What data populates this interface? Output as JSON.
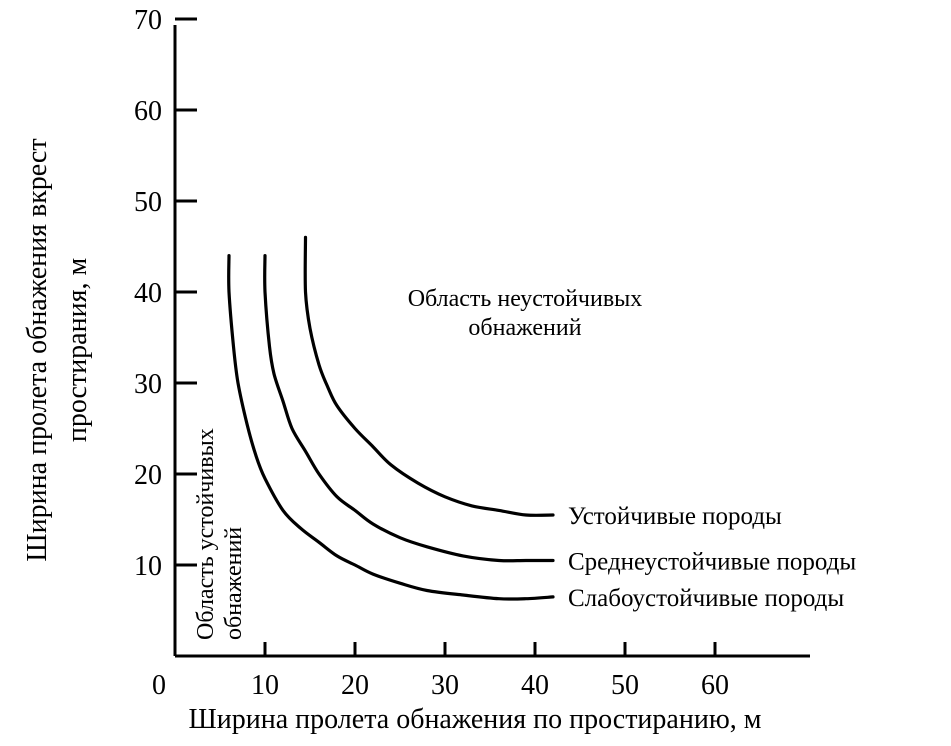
{
  "chart_data": {
    "type": "line",
    "xlabel": "Ширина пролета обнажения по простиранию, м",
    "ylabel_lines": [
      "Ширина пролета обнажения вкрест",
      "простирания, м"
    ],
    "xlim": [
      0,
      70
    ],
    "ylim": [
      0,
      70
    ],
    "x_ticks": [
      0,
      10,
      20,
      30,
      40,
      50,
      60
    ],
    "y_ticks": [
      10,
      20,
      30,
      40,
      50,
      60,
      70
    ],
    "grid": false,
    "series": [
      {
        "name": "Устойчивые породы",
        "x": [
          14.5,
          14.5,
          15,
          16,
          17,
          18,
          20,
          22,
          24,
          27,
          30,
          33,
          36,
          39,
          42
        ],
        "y": [
          46,
          40,
          36,
          32,
          29.5,
          27.5,
          25,
          23,
          21,
          19,
          17.5,
          16.5,
          16,
          15.5,
          15.5
        ]
      },
      {
        "name": "Среднеустойчивые породы",
        "x": [
          10,
          10,
          10.5,
          11,
          12,
          13,
          14.5,
          16,
          18,
          20,
          22,
          25,
          28,
          32,
          36,
          39,
          42
        ],
        "y": [
          44,
          40,
          34,
          31,
          28,
          25,
          22.5,
          20,
          17.5,
          16,
          14.5,
          13,
          12,
          11,
          10.5,
          10.5,
          10.5
        ]
      },
      {
        "name": "Слабоустойчивые породы",
        "x": [
          6,
          6,
          6.5,
          7,
          8,
          9,
          10,
          12,
          14,
          16,
          18,
          20,
          22,
          25,
          28,
          32,
          36,
          39,
          42
        ],
        "y": [
          44,
          40,
          34,
          30,
          25.5,
          22,
          19.5,
          16,
          14,
          12.5,
          11,
          10,
          9,
          8,
          7.2,
          6.7,
          6.3,
          6.3,
          6.5
        ]
      }
    ],
    "annotations": {
      "unstable_lines": [
        "Область неустойчивых",
        "обнажений"
      ],
      "stable_lines": [
        "Область устойчивых",
        "обнажений"
      ]
    }
  }
}
